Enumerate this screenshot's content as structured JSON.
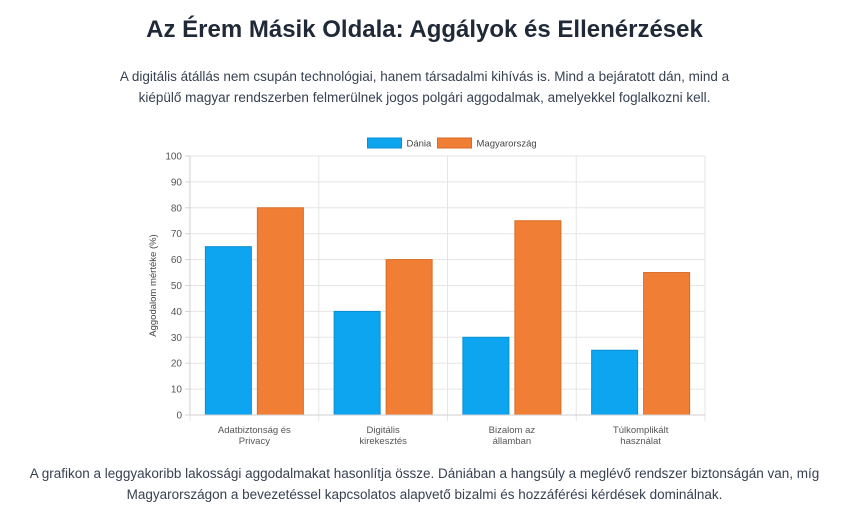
{
  "header": {
    "title": "Az Érem Másik Oldala: Aggályok és Ellenérzések",
    "intro": "A digitális átállás nem csupán technológiai, hanem társadalmi kihívás is. Mind a bejáratott dán, mind a kiépülő magyar rendszerben felmerülnek jogos polgári aggodalmak, amelyekkel foglalkozni kell."
  },
  "footer": {
    "text": "A grafikon a leggyakoribb lakossági aggodalmakat hasonlítja össze. Dániában a hangsúly a meglévő rendszer biztonságán van, míg Magyarországon a bevezetéssel kapcsolatos alapvető bizalmi és hozzáférési kérdések dominálnak."
  },
  "chart_data": {
    "type": "bar",
    "categories": [
      [
        "Adatbiztonság és",
        "Privacy"
      ],
      [
        "Digitális",
        "kirekesztés"
      ],
      [
        "Bizalom az",
        "államban"
      ],
      [
        "Túlkomplikált",
        "használat"
      ]
    ],
    "series": [
      {
        "name": "Dánia",
        "values": [
          65,
          40,
          30,
          25
        ],
        "color": "#0ea5f0"
      },
      {
        "name": "Magyarország",
        "values": [
          80,
          60,
          75,
          55
        ],
        "color": "#f07f35"
      }
    ],
    "ylabel": "Aggodalom mértéke (%)",
    "xlabel": "",
    "ylim": [
      0,
      100
    ],
    "yticks": [
      "0",
      "10",
      "20",
      "30",
      "40",
      "50",
      "60",
      "70",
      "80",
      "90",
      "100"
    ],
    "grid": true,
    "legend": "top-center"
  }
}
